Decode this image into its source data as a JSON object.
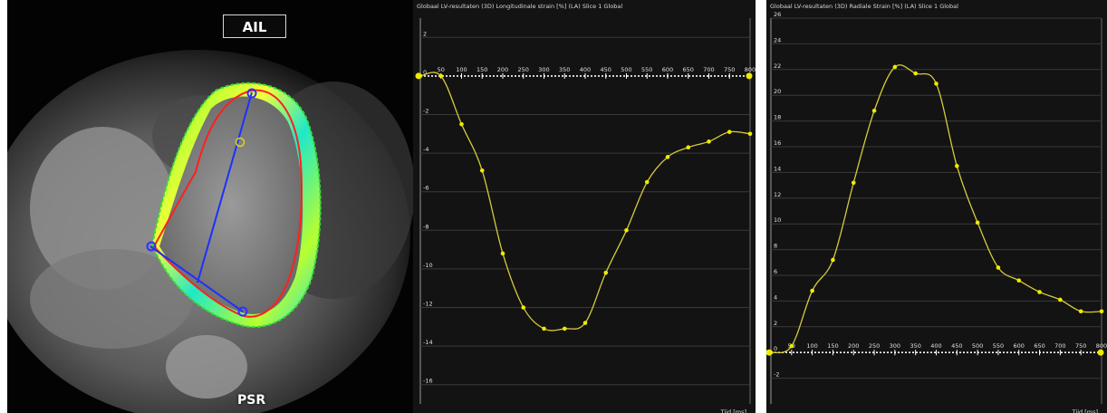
{
  "mri": {
    "top_label": "AIL",
    "bottom_label": "PSR"
  },
  "colors": {
    "background": "#131313",
    "grid": "#3a3a3a",
    "curve": "#d4cc3a",
    "points": "#f0ea00",
    "contour_endo": "#ff2020",
    "contour_epi": "#30e030",
    "long_axis": "#1e30ff"
  },
  "chart_data": [
    {
      "type": "line",
      "title": "Globaal LV-resultaten (3D) Longitudinale strain [%] (LA) Slice 1 Global",
      "xlabel": "Tijd [ms]",
      "ylabel": "",
      "xlim": [
        0,
        800
      ],
      "ylim": [
        -17,
        3
      ],
      "x_axis_at": 0,
      "grid": true,
      "yticks": [
        2,
        0,
        -2,
        -4,
        -6,
        -8,
        -10,
        -12,
        -14,
        -16
      ],
      "xticks": [
        0,
        50,
        100,
        150,
        200,
        250,
        300,
        350,
        400,
        450,
        500,
        550,
        600,
        650,
        700,
        750,
        800
      ],
      "series": [
        {
          "x": [
            0,
            50,
            100,
            150,
            200,
            250,
            300,
            350,
            400,
            450,
            500,
            550,
            600,
            650,
            700,
            750,
            800
          ],
          "y": [
            0,
            0,
            -2.5,
            -4.9,
            -9.2,
            -12.0,
            -13.1,
            -13.1,
            -12.8,
            -10.2,
            -8.0,
            -5.5,
            -4.2,
            -3.7,
            -3.4,
            -2.9,
            -3.0
          ]
        }
      ]
    },
    {
      "type": "line",
      "title": "Globaal LV-resultaten (3D) Radiale Strain [%] (LA) Slice 1 Global",
      "xlabel": "Tijd [ms]",
      "ylabel": "",
      "xlim": [
        0,
        800
      ],
      "ylim": [
        -4,
        26
      ],
      "x_axis_at": 0,
      "grid": true,
      "yticks": [
        26,
        24,
        22,
        20,
        18,
        16,
        14,
        12,
        10,
        8,
        6,
        4,
        2,
        0,
        -2
      ],
      "xticks": [
        0,
        50,
        100,
        150,
        200,
        250,
        300,
        350,
        400,
        450,
        500,
        550,
        600,
        650,
        700,
        750,
        800
      ],
      "series": [
        {
          "x": [
            0,
            50,
            100,
            150,
            200,
            250,
            300,
            350,
            400,
            450,
            500,
            550,
            600,
            650,
            700,
            750,
            800
          ],
          "y": [
            0,
            0.5,
            4.8,
            7.2,
            13.2,
            18.8,
            22.2,
            21.7,
            20.9,
            14.5,
            10.1,
            6.6,
            5.6,
            4.7,
            4.1,
            3.2,
            3.2
          ]
        }
      ]
    }
  ]
}
